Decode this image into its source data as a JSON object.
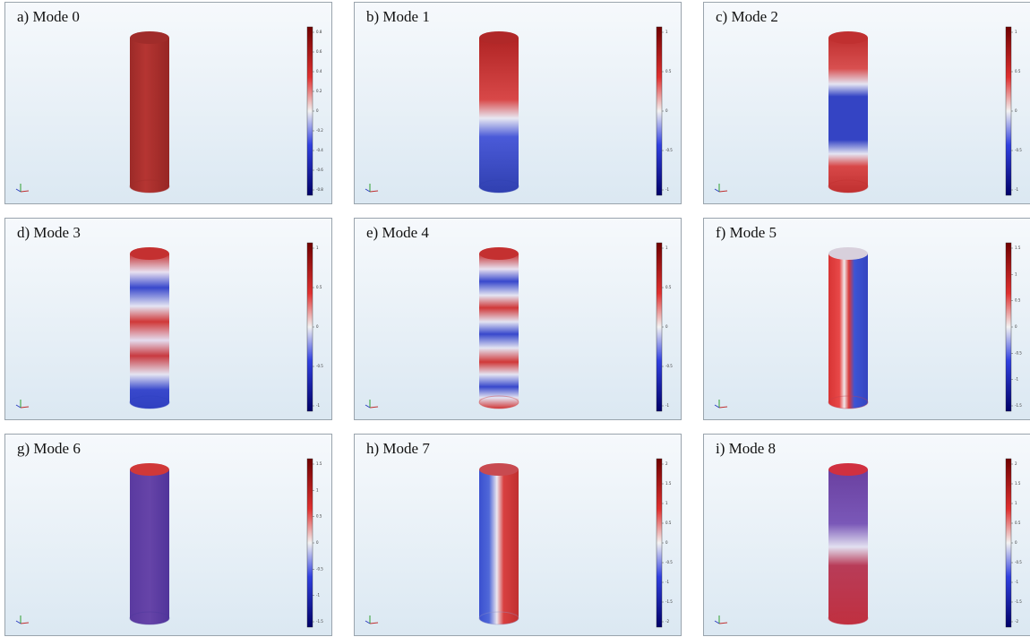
{
  "panels": [
    {
      "label": "a) Mode 0",
      "colorbar_ticks": [
        "0.8",
        "0.6",
        "0.4",
        "0.2",
        "0",
        "-0.2",
        "-0.4",
        "-0.6",
        "-0.8"
      ]
    },
    {
      "label": "b) Mode 1",
      "colorbar_ticks": [
        "1",
        "0.5",
        "0",
        "-0.5",
        "-1"
      ]
    },
    {
      "label": "c) Mode 2",
      "colorbar_ticks": [
        "1",
        "0.5",
        "0",
        "-0.5",
        "-1"
      ]
    },
    {
      "label": "d) Mode 3",
      "colorbar_ticks": [
        "1",
        "0.5",
        "0",
        "-0.5",
        "-1"
      ]
    },
    {
      "label": "e) Mode 4",
      "colorbar_ticks": [
        "1",
        "0.5",
        "0",
        "-0.5",
        "-1"
      ]
    },
    {
      "label": "f) Mode 5",
      "colorbar_ticks": [
        "1.5",
        "1",
        "0.5",
        "0",
        "-0.5",
        "-1",
        "-1.5"
      ]
    },
    {
      "label": "g) Mode 6",
      "colorbar_ticks": [
        "1.5",
        "1",
        "0.5",
        "0",
        "-0.5",
        "-1",
        "-1.5"
      ]
    },
    {
      "label": "h) Mode 7",
      "colorbar_ticks": [
        "2",
        "1.5",
        "1",
        "0.5",
        "0",
        "-0.5",
        "-1",
        "-1.5",
        "-2"
      ]
    },
    {
      "label": "i) Mode 8",
      "colorbar_ticks": [
        "2",
        "1.5",
        "1",
        "0.5",
        "0",
        "-0.5",
        "-1",
        "-1.5",
        "-2"
      ]
    }
  ]
}
